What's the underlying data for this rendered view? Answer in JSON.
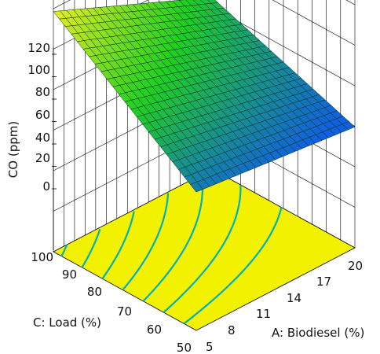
{
  "chart_data": {
    "type": "surface3d",
    "zlabel": "CO (ppm)",
    "xlabel": "A: Biodiesel (%)",
    "ylabel": "C: Load (%)",
    "x_ticks": [
      "5",
      "8",
      "11",
      "14",
      "17",
      "20"
    ],
    "y_ticks": [
      "50",
      "60",
      "70",
      "80",
      "90",
      "100"
    ],
    "z_ticks": [
      "0",
      "20",
      "40",
      "60",
      "80",
      "100",
      "120"
    ],
    "xlim": [
      5,
      20
    ],
    "ylim": [
      50,
      100
    ],
    "zlim": [
      0,
      120
    ],
    "surface_corners": [
      {
        "x": 5,
        "y": 100,
        "z": 84
      },
      {
        "x": 20,
        "y": 100,
        "z": 37
      },
      {
        "x": 20,
        "y": 50,
        "z": 2
      },
      {
        "x": 5,
        "y": 50,
        "z": 14
      }
    ],
    "contour_levels": [
      20,
      30,
      40,
      50,
      60,
      70,
      80
    ],
    "colors": {
      "floor": "#f2f200",
      "contour": "#00b0c0",
      "surface_high": "#f0ee20",
      "surface_mid": "#20d020",
      "surface_low": "#1060e0",
      "grid": "#000000"
    }
  }
}
